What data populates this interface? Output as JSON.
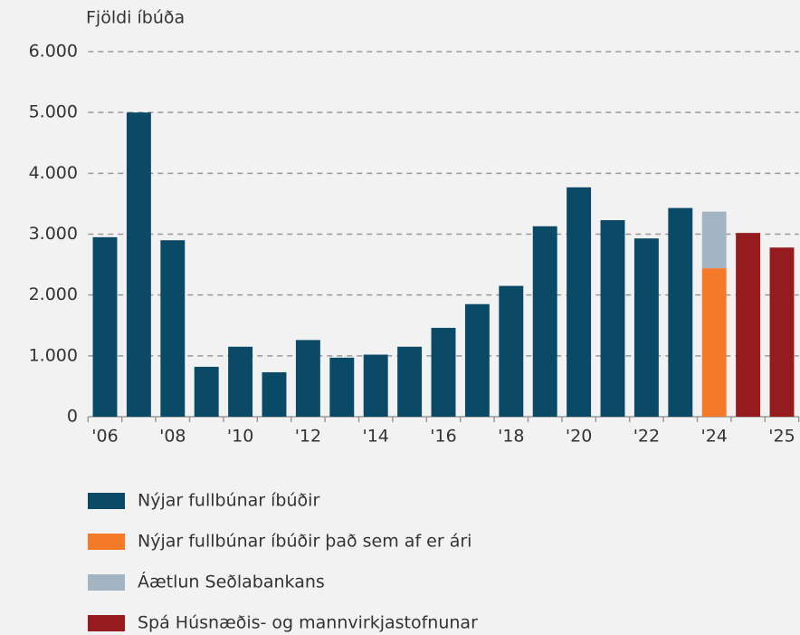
{
  "chart_data": {
    "type": "stacked_bar",
    "y_label": "Fjöldi íbúða",
    "categories": [
      "'06",
      null,
      "'08",
      null,
      "'10",
      null,
      "'12",
      null,
      "'14",
      null,
      "'16",
      null,
      "'18",
      null,
      "'20",
      null,
      "'22",
      null,
      "'24",
      null,
      "'25"
    ],
    "series": [
      {
        "name": "Nýjar fullbúnar íbúðir",
        "color": "#0b4a66",
        "values": [
          2950,
          5000,
          2900,
          820,
          1150,
          730,
          1260,
          970,
          1020,
          1150,
          1460,
          1850,
          2150,
          3130,
          3770,
          3230,
          2930,
          3430,
          null,
          null,
          null
        ]
      },
      {
        "name": "Nýjar fullbúnar íbúðir það sem af er ári",
        "color": "#f47a2a",
        "values": [
          null,
          null,
          null,
          null,
          null,
          null,
          null,
          null,
          null,
          null,
          null,
          null,
          null,
          null,
          null,
          null,
          null,
          null,
          2440,
          null,
          null
        ]
      },
      {
        "name": "Áætlun Seðlabankans",
        "color": "#a3b5c2",
        "values": [
          null,
          null,
          null,
          null,
          null,
          null,
          null,
          null,
          null,
          null,
          null,
          null,
          null,
          null,
          null,
          null,
          null,
          null,
          930,
          null,
          null
        ]
      },
      {
        "name": "Spá Húsnæðis- og mannvirkjastofnunar",
        "color": "#951b1e",
        "values": [
          null,
          null,
          null,
          null,
          null,
          null,
          null,
          null,
          null,
          null,
          null,
          null,
          null,
          null,
          null,
          null,
          null,
          null,
          null,
          3020,
          2780
        ]
      }
    ],
    "ylim": [
      0,
      6000
    ],
    "yticks": [
      0,
      {
        "value": 1000,
        "label": "1.000"
      },
      {
        "value": 2000,
        "label": "2.000"
      },
      {
        "value": 3000,
        "label": "3.000"
      },
      {
        "value": 4000,
        "label": "4.000"
      },
      {
        "value": 5000,
        "label": "5.000"
      },
      {
        "value": 6000,
        "label": "6.000"
      }
    ],
    "grid": true,
    "legend": "bottom"
  }
}
